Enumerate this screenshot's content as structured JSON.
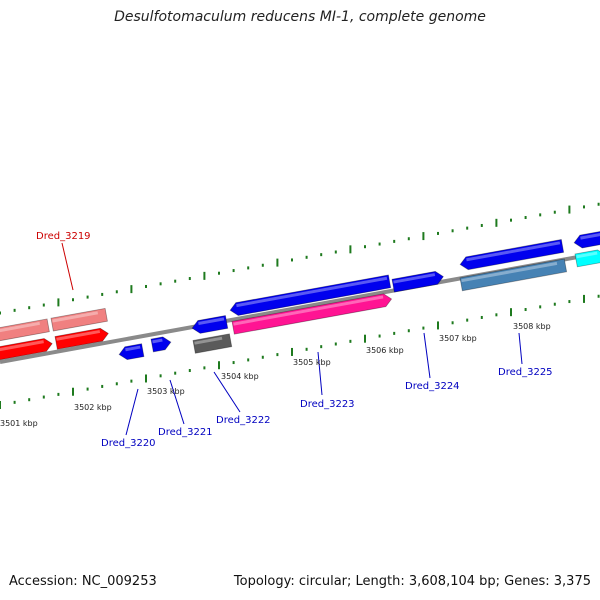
{
  "title": "Desulfotomaculum reducens MI-1, complete genome",
  "footer": {
    "accession": "Accession: NC_009253",
    "summary": "Topology: circular; Length: 3,608,104 bp; Genes: 3,375"
  },
  "colors": {
    "backbone": "#8a8a8a",
    "tick": "#1e7a1e",
    "gene_label": "#0000c0",
    "highlight_label": "#cc0000"
  },
  "scale_labels": [
    "3501 kbp",
    "3502 kbp",
    "3503 kbp",
    "3504 kbp",
    "3505 kbp",
    "3506 kbp",
    "3507 kbp",
    "3508 kbp"
  ],
  "gene_labels": [
    {
      "text": "Dred_3219",
      "highlight": true
    },
    {
      "text": "Dred_3220",
      "highlight": false
    },
    {
      "text": "Dred_3221",
      "highlight": false
    },
    {
      "text": "Dred_3222",
      "highlight": false
    },
    {
      "text": "Dred_3223",
      "highlight": false
    },
    {
      "text": "Dred_3224",
      "highlight": false
    },
    {
      "text": "Dred_3225",
      "highlight": false
    }
  ],
  "genes": [
    {
      "name": "light-red-gene-1",
      "color": "#f08080"
    },
    {
      "name": "light-red-gene-2",
      "color": "#f08080"
    },
    {
      "name": "red-gene-1",
      "color": "#ff0000"
    },
    {
      "name": "red-gene-2",
      "color": "#ff0000"
    },
    {
      "name": "blue-gene-small-1",
      "color": "#0000ee"
    },
    {
      "name": "blue-gene-small-2",
      "color": "#0000ee"
    },
    {
      "name": "blue-gene-3",
      "color": "#0000ee"
    },
    {
      "name": "gray-gene",
      "color": "#5a5a5a"
    },
    {
      "name": "blue-gene-long",
      "color": "#0000ee"
    },
    {
      "name": "pink-gene",
      "color": "#ff1493"
    },
    {
      "name": "blue-gene-4",
      "color": "#0000ee"
    },
    {
      "name": "blue-gene-5",
      "color": "#0000ee"
    },
    {
      "name": "steelblue-gene",
      "color": "#4682b4"
    },
    {
      "name": "blue-gene-edge",
      "color": "#0000ee"
    },
    {
      "name": "cyan-gene",
      "color": "#00ffff"
    }
  ]
}
